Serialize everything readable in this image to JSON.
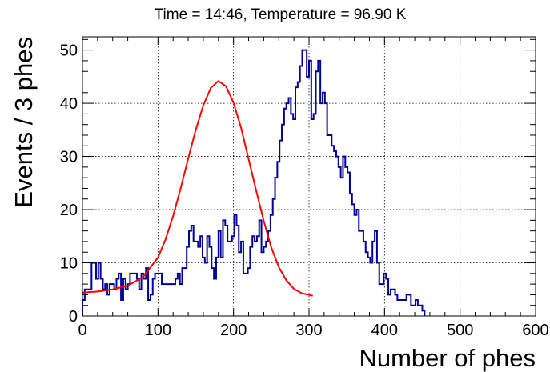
{
  "chart_data": {
    "type": "histogram",
    "title": "Time = 14:46, Temperature = 96.90 K",
    "xlabel": "Number of phes",
    "ylabel": "Events / 3 phes",
    "xlim": [
      0,
      600
    ],
    "ylim": [
      0,
      52.5
    ],
    "bin_width": 3,
    "x_ticks": [
      0,
      100,
      200,
      300,
      400,
      500,
      600
    ],
    "y_ticks": [
      0,
      10,
      20,
      30,
      40,
      50
    ],
    "grid": true,
    "legend": "none",
    "histogram_color": "#000099",
    "fit_color": "#ff0000",
    "histogram_counts": [
      3,
      5,
      5,
      5,
      10,
      10,
      7,
      10,
      7,
      5,
      6,
      4,
      6,
      6,
      5,
      7,
      8,
      3,
      7,
      5,
      6,
      8,
      8,
      8,
      7,
      5,
      8,
      7,
      9,
      3,
      4,
      7,
      8,
      8,
      8,
      6,
      6,
      6,
      6,
      6,
      6,
      7,
      8,
      6,
      9,
      9,
      13,
      16,
      17,
      14,
      14,
      13,
      15,
      11,
      10,
      15,
      13,
      9,
      7,
      11,
      16,
      11,
      18,
      17,
      14,
      14,
      15,
      19,
      17,
      12,
      14,
      8,
      8,
      9,
      13,
      15,
      14,
      15,
      18,
      12,
      13,
      14,
      16,
      19,
      22,
      26,
      29,
      33,
      36,
      39,
      40,
      41,
      38,
      37,
      43,
      44,
      47,
      50,
      50,
      45,
      48,
      37,
      38,
      46,
      48,
      40,
      42,
      40,
      34,
      34,
      32,
      31,
      30,
      28,
      26,
      30,
      28,
      27,
      23,
      21,
      19,
      20,
      16,
      16,
      14,
      12,
      11,
      10,
      14,
      16,
      10,
      6,
      6,
      8,
      7,
      4,
      5,
      5,
      4,
      3,
      3,
      3,
      3,
      4,
      4,
      2,
      2,
      3,
      2,
      2,
      1
    ],
    "fit_curve": {
      "x": [
        0,
        20,
        40,
        60,
        80,
        100,
        110,
        120,
        130,
        140,
        150,
        160,
        170,
        180,
        190,
        200,
        210,
        220,
        230,
        240,
        250,
        260,
        270,
        280,
        290,
        305
      ],
      "y": [
        4.4,
        4.6,
        5.0,
        5.7,
        7.3,
        11.0,
        14.4,
        18.8,
        24.0,
        29.6,
        35.0,
        39.6,
        42.9,
        44.2,
        43.2,
        40.1,
        35.4,
        29.5,
        23.6,
        17.9,
        12.9,
        9.2,
        6.7,
        5.1,
        4.3,
        3.8
      ]
    }
  }
}
